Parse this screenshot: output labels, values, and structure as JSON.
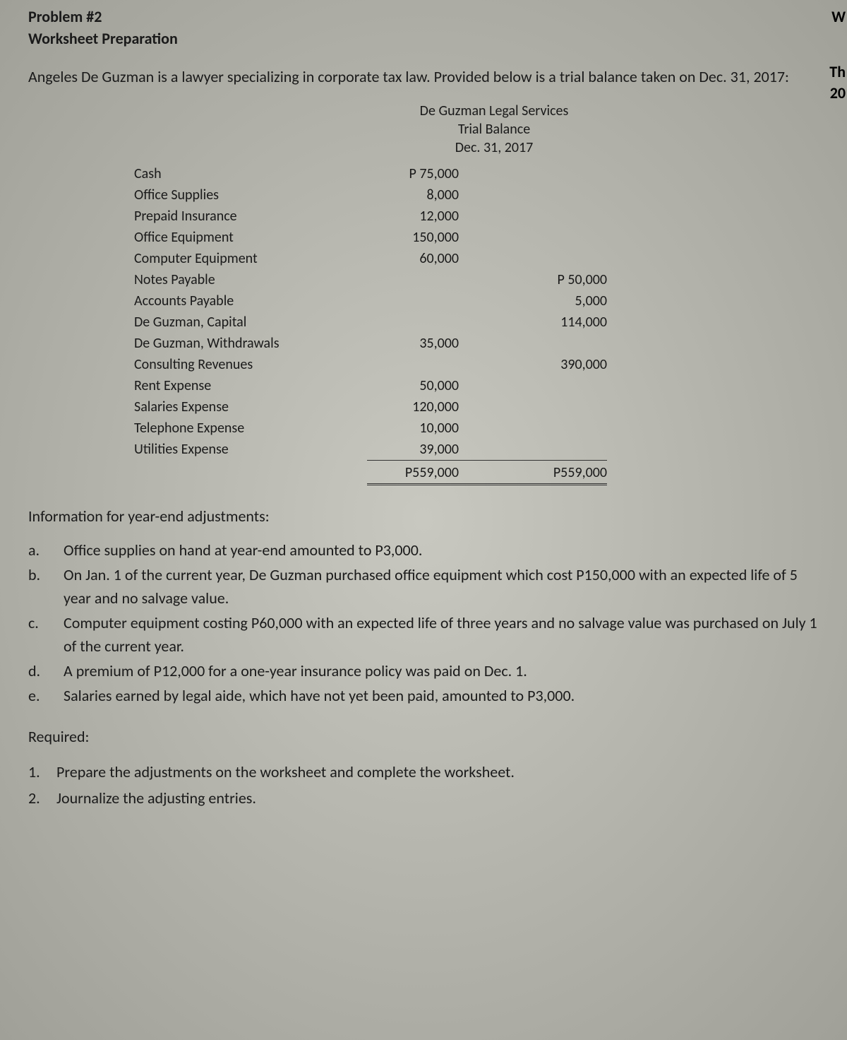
{
  "problem_number": "Problem #2",
  "worksheet_title": "Worksheet Preparation",
  "intro": "Angeles De Guzman is a lawyer specializing in corporate tax law. Provided below is a trial balance taken on Dec. 31, 2017:",
  "trial_balance_header": {
    "company": "De Guzman Legal Services",
    "title": "Trial Balance",
    "date": "Dec. 31, 2017"
  },
  "accounts": [
    {
      "name": "Cash",
      "debit": "P 75,000",
      "credit": ""
    },
    {
      "name": "Office Supplies",
      "debit": "8,000",
      "credit": ""
    },
    {
      "name": "Prepaid Insurance",
      "debit": "12,000",
      "credit": ""
    },
    {
      "name": "Office Equipment",
      "debit": "150,000",
      "credit": ""
    },
    {
      "name": "Computer Equipment",
      "debit": "60,000",
      "credit": ""
    },
    {
      "name": "Notes Payable",
      "debit": "",
      "credit": "P 50,000"
    },
    {
      "name": "Accounts Payable",
      "debit": "",
      "credit": "5,000"
    },
    {
      "name": "De Guzman, Capital",
      "debit": "",
      "credit": "114,000"
    },
    {
      "name": "De Guzman, Withdrawals",
      "debit": "35,000",
      "credit": ""
    },
    {
      "name": "Consulting Revenues",
      "debit": "",
      "credit": "390,000"
    },
    {
      "name": "Rent Expense",
      "debit": "50,000",
      "credit": ""
    },
    {
      "name": "Salaries Expense",
      "debit": "120,000",
      "credit": ""
    },
    {
      "name": "Telephone Expense",
      "debit": "10,000",
      "credit": ""
    },
    {
      "name": "Utilities Expense",
      "debit": "39,000",
      "credit": ""
    }
  ],
  "totals": {
    "debit": "P559,000",
    "credit": "P559,000"
  },
  "info_header": "Information for year-end adjustments:",
  "adjustments": [
    {
      "letter": "a.",
      "text": "Office supplies on hand at year-end amounted to P3,000."
    },
    {
      "letter": "b.",
      "text": "On Jan. 1 of the current year, De Guzman purchased office equipment which cost P150,000 with an expected life of 5 year and no salvage value."
    },
    {
      "letter": "c.",
      "text": "Computer equipment costing P60,000 with an expected life of three years and no salvage value was purchased on July 1 of the current year."
    },
    {
      "letter": "d.",
      "text": "A premium of P12,000 for a one-year insurance policy was paid on Dec. 1."
    },
    {
      "letter": "e.",
      "text": "Salaries earned by legal aide, which have not yet been paid, amounted to P3,000."
    }
  ],
  "required_label": "Required:",
  "requirements": [
    {
      "num": "1.",
      "text": "Prepare the adjustments on the worksheet and complete the worksheet."
    },
    {
      "num": "2.",
      "text": "Journalize the adjusting entries."
    }
  ],
  "edge_text": {
    "w": "W",
    "th": "Th",
    "twenty": "20"
  },
  "colors": {
    "text": "#1a1a1a",
    "background_light": "#c8c8c0",
    "background_dark": "#a0a098"
  },
  "typography": {
    "body_fontsize": 22,
    "tb_fontsize": 20,
    "font_family": "Calibri, Arial, sans-serif"
  }
}
